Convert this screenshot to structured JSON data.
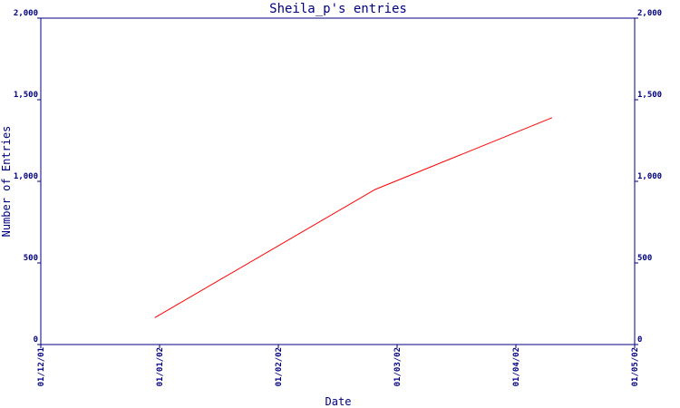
{
  "colors": {
    "axis": "#000080",
    "series_line": "#ff0000",
    "background": "#ffffff"
  },
  "chart_data": {
    "type": "line",
    "title": "Sheila_p's entries",
    "xlabel": "Date",
    "ylabel": "Number of Entries",
    "x_ticks": [
      "01/12/01",
      "01/01/02",
      "01/02/02",
      "01/03/02",
      "01/04/02",
      "01/05/02"
    ],
    "y_ticks": [
      "0",
      "500",
      "1,000",
      "1,500",
      "2,000"
    ],
    "y_tick_values": [
      0,
      500,
      1000,
      1500,
      2000
    ],
    "ylim": [
      0,
      2000
    ],
    "xlim": [
      "2001-12-01",
      "2002-05-01"
    ],
    "grid": false,
    "right_axis_mirror": true,
    "series": [
      {
        "color": "#ff0000",
        "x": [
          "2001-12-30",
          "2002-02-24",
          "2002-04-10"
        ],
        "values": [
          165,
          950,
          1390
        ]
      }
    ]
  }
}
